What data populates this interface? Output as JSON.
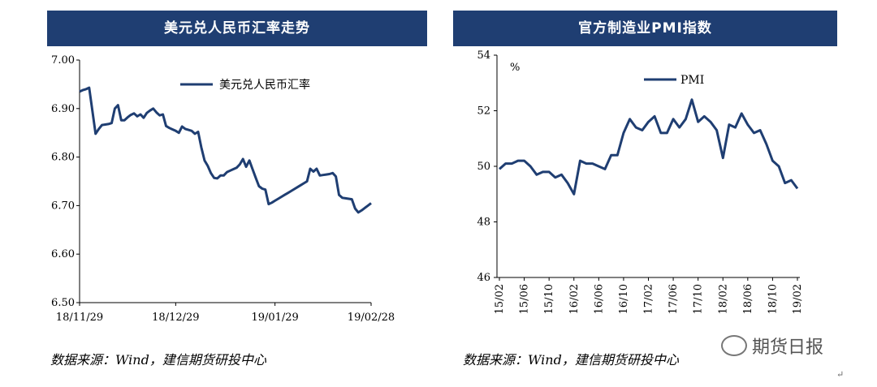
{
  "watermark": "期货日报",
  "return_mark": "↵",
  "chart_data": [
    {
      "type": "line",
      "title": "美元兑人民币汇率走势",
      "source": "数据来源：Wind，建信期货研投中心",
      "ylim": [
        6.5,
        7.0
      ],
      "yticks": [
        "7.00",
        "6.90",
        "6.80",
        "6.70",
        "6.60",
        "6.50"
      ],
      "yvals": [
        7.0,
        6.9,
        6.8,
        6.7,
        6.6,
        6.5
      ],
      "xtick_labels": [
        "18/11/29",
        "18/12/29",
        "19/01/29",
        "19/02/28"
      ],
      "xtick_index": [
        0,
        30,
        61,
        91
      ],
      "legend_position": "top-right",
      "series": [
        {
          "name": "美元兑人民币汇率",
          "color": "#1f3e72",
          "values": [
            6.935,
            6.938,
            6.94,
            6.943,
            6.895,
            6.848,
            6.858,
            6.866,
            6.867,
            6.868,
            6.87,
            6.9,
            6.907,
            6.876,
            6.876,
            6.882,
            6.887,
            6.89,
            6.884,
            6.888,
            6.881,
            6.891,
            6.896,
            6.9,
            6.892,
            6.886,
            6.888,
            6.864,
            6.86,
            6.857,
            6.854,
            6.85,
            6.863,
            6.858,
            6.856,
            6.854,
            6.848,
            6.852,
            6.82,
            6.793,
            6.782,
            6.767,
            6.757,
            6.756,
            6.762,
            6.762,
            6.769,
            6.772,
            6.775,
            6.778,
            6.785,
            6.796,
            6.78,
            6.793,
            6.775,
            6.757,
            6.74,
            6.735,
            6.733,
            6.703,
            6.706,
            6.71,
            6.714,
            6.718,
            6.722,
            6.726,
            6.73,
            6.734,
            6.738,
            6.742,
            6.746,
            6.75,
            6.776,
            6.77,
            6.776,
            6.762,
            6.763,
            6.764,
            6.765,
            6.767,
            6.76,
            6.722,
            6.716,
            6.715,
            6.714,
            6.713,
            6.694,
            6.686,
            6.69,
            6.695,
            6.7,
            6.705
          ]
        }
      ]
    },
    {
      "type": "line",
      "title": "官方制造业PMI指数",
      "source": "数据来源：Wind，建信期货研投中心",
      "ylabel": "%",
      "ylim": [
        46,
        54
      ],
      "yticks": [
        "54",
        "52",
        "50",
        "48",
        "46"
      ],
      "yvals": [
        54,
        52,
        50,
        48,
        46
      ],
      "xtick_labels": [
        "15/02",
        "15/06",
        "15/10",
        "16/02",
        "16/06",
        "16/10",
        "17/02",
        "17/06",
        "17/10",
        "18/02",
        "18/06",
        "18/10",
        "19/02"
      ],
      "xtick_index": [
        0,
        4,
        8,
        12,
        16,
        20,
        24,
        28,
        32,
        36,
        40,
        44,
        48
      ],
      "legend_position": "top-center",
      "series": [
        {
          "name": "PMI",
          "color": "#1f3e72",
          "x": [
            "15/02",
            "15/03",
            "15/04",
            "15/05",
            "15/06",
            "15/07",
            "15/08",
            "15/09",
            "15/10",
            "15/11",
            "15/12",
            "16/01",
            "16/02",
            "16/03",
            "16/04",
            "16/05",
            "16/06",
            "16/07",
            "16/08",
            "16/09",
            "16/10",
            "16/11",
            "16/12",
            "17/01",
            "17/02",
            "17/03",
            "17/04",
            "17/05",
            "17/06",
            "17/07",
            "17/08",
            "17/09",
            "17/10",
            "17/11",
            "17/12",
            "18/01",
            "18/02",
            "18/03",
            "18/04",
            "18/05",
            "18/06",
            "18/07",
            "18/08",
            "18/09",
            "18/10",
            "18/11",
            "18/12",
            "19/01",
            "19/02"
          ],
          "values": [
            49.9,
            50.1,
            50.1,
            50.2,
            50.2,
            50.0,
            49.7,
            49.8,
            49.8,
            49.6,
            49.7,
            49.4,
            49.0,
            50.2,
            50.1,
            50.1,
            50.0,
            49.9,
            50.4,
            50.4,
            51.2,
            51.7,
            51.4,
            51.3,
            51.6,
            51.8,
            51.2,
            51.2,
            51.7,
            51.4,
            51.7,
            52.4,
            51.6,
            51.8,
            51.6,
            51.3,
            50.3,
            51.5,
            51.4,
            51.9,
            51.5,
            51.2,
            51.3,
            50.8,
            50.2,
            50.0,
            49.4,
            49.5,
            49.2
          ]
        }
      ]
    }
  ]
}
